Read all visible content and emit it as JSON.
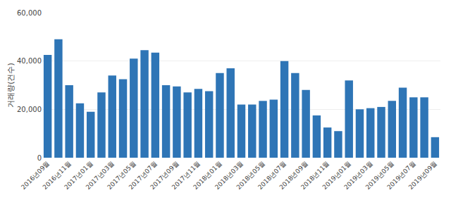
{
  "chart_data": {
    "type": "bar",
    "categories": [
      "2016년09월",
      null,
      "2016년11월",
      null,
      "2017년01월",
      null,
      "2017년03월",
      null,
      "2017년05월",
      null,
      "2017년07월",
      null,
      "2017년09월",
      null,
      "2017년11월",
      null,
      "2018년01월",
      null,
      "2018년03월",
      null,
      "2018년05월",
      null,
      "2018년07월",
      null,
      "2018년09월",
      null,
      "2018년11월",
      null,
      "2019년01월",
      null,
      "2019년03월",
      null,
      "2019년05월",
      null,
      "2019년07월",
      null,
      "2019년09월"
    ],
    "values": [
      42500,
      49000,
      30000,
      22500,
      19000,
      27000,
      34000,
      32500,
      41000,
      44500,
      43500,
      30000,
      29500,
      27000,
      28500,
      27500,
      35000,
      37000,
      22000,
      22000,
      23500,
      24000,
      40000,
      35000,
      28000,
      17500,
      12500,
      11000,
      32000,
      20000,
      20500,
      21000,
      23500,
      29000,
      25000,
      25000,
      8500
    ],
    "color": "#2e75b6",
    "ylabel": "거래량(건수)",
    "ylim": [
      0,
      60000
    ],
    "yticks": [
      0,
      {
        "value": 20000,
        "label": "20,000"
      },
      {
        "value": 40000,
        "label": "40,000"
      },
      {
        "value": 60000,
        "label": "60,000"
      }
    ],
    "grid": true
  }
}
